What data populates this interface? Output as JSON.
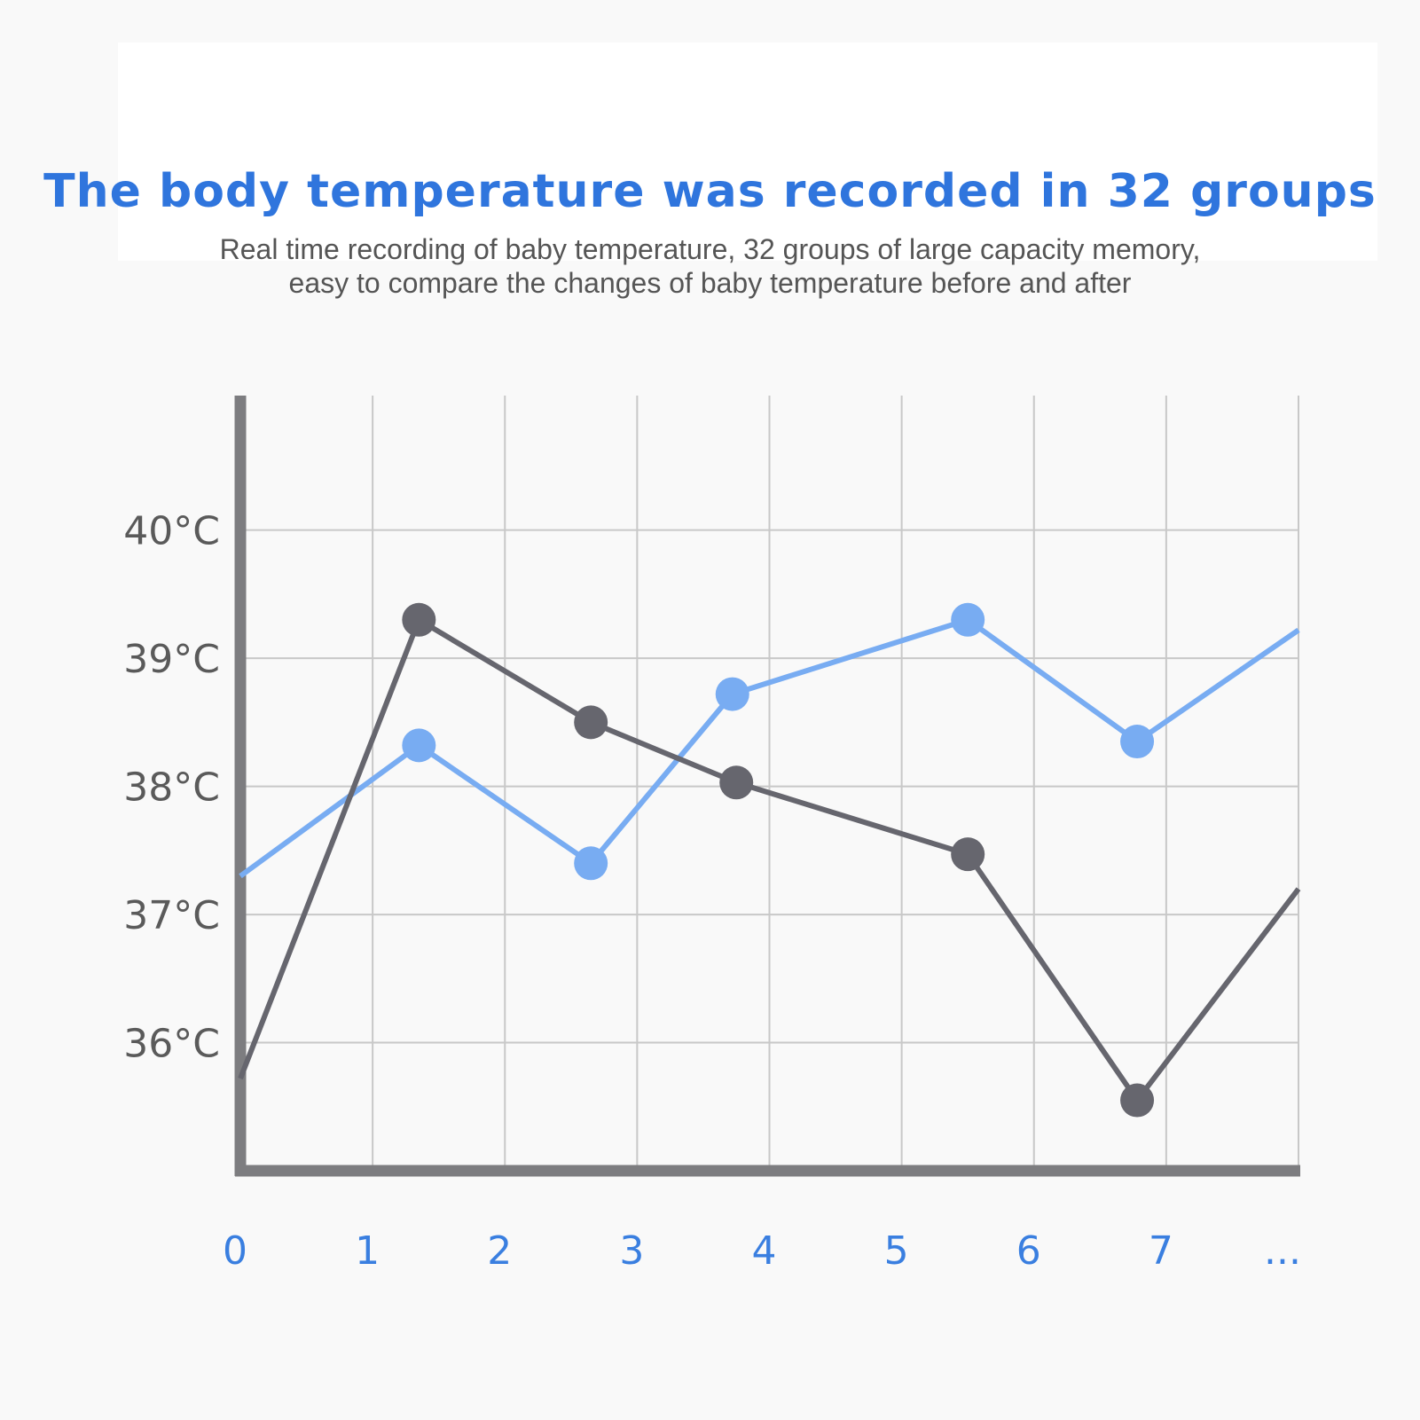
{
  "header": {
    "title": "The body temperature was recorded in 32 groups",
    "subtitle_line1": "Real time recording of baby temperature, 32 groups of large capacity memory,",
    "subtitle_line2": "easy to compare the changes of baby temperature before and after"
  },
  "colors": {
    "title": "#2f75dd",
    "axis": "#7d7d80",
    "grid": "#c8c8c8",
    "series_blue": "#78acf2",
    "series_gray": "#66666e",
    "x_tick_text": "#3a7fe0",
    "y_tick_text": "#5a5a5a"
  },
  "chart_data": {
    "type": "line",
    "title": "",
    "xlabel": "",
    "ylabel": "",
    "x_tick_labels": [
      "0",
      "1",
      "2",
      "3",
      "4",
      "5",
      "6",
      "7",
      "..."
    ],
    "y_tick_labels": [
      "36°C",
      "37°C",
      "38°C",
      "39°C",
      "40°C"
    ],
    "y_tick_values": [
      36,
      37,
      38,
      39,
      40
    ],
    "xlim": [
      0,
      8
    ],
    "ylim": [
      35,
      41.05
    ],
    "grid": true,
    "series": [
      {
        "color": "#78acf2",
        "x": [
          0,
          1.35,
          2.65,
          3.72,
          5.5,
          6.78,
          8
        ],
        "y": [
          37.3,
          38.32,
          37.4,
          38.72,
          39.3,
          38.35,
          39.22
        ],
        "markers": [
          false,
          true,
          true,
          true,
          true,
          true,
          false
        ]
      },
      {
        "color": "#66666e",
        "x": [
          0,
          1.35,
          2.65,
          3.75,
          5.5,
          6.78,
          8
        ],
        "y": [
          35.72,
          39.3,
          38.5,
          38.03,
          37.47,
          35.55,
          37.2
        ],
        "markers": [
          false,
          true,
          true,
          true,
          true,
          true,
          false
        ]
      }
    ]
  }
}
